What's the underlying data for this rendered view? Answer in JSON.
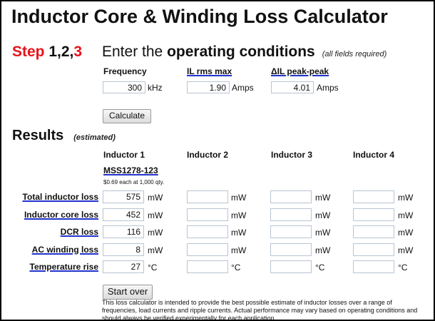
{
  "title": "Inductor Core & Winding Loss Calculator",
  "step": {
    "word": "Step",
    "nums": "1,2,",
    "active": "3"
  },
  "enter": {
    "prefix": "Enter the",
    "bold": "operating conditions",
    "note": "(all fields required)"
  },
  "inputs": [
    {
      "label": "Frequency",
      "value": "300",
      "unit": "kHz"
    },
    {
      "label": "IL rms max",
      "value": "1.90",
      "unit": "Amps"
    },
    {
      "label": "ΔIL peak-peak",
      "value": "4.01",
      "unit": "Amps"
    }
  ],
  "calculate_label": "Calculate",
  "results": {
    "title": "Results",
    "note": "(estimated)",
    "inductors": [
      "Inductor 1",
      "Inductor 2",
      "Inductor 3",
      "Inductor 4"
    ],
    "part": "MSS1278-123",
    "price": "$0.69 each at 1,000 qty.",
    "rows": [
      {
        "label": "Total inductor loss",
        "unit": "mW",
        "values": [
          "575",
          "",
          "",
          ""
        ]
      },
      {
        "label": "Inductor core loss",
        "unit": "mW",
        "values": [
          "452",
          "",
          "",
          ""
        ]
      },
      {
        "label": "DCR loss",
        "unit": "mW",
        "values": [
          "116",
          "",
          "",
          ""
        ]
      },
      {
        "label": "AC winding loss",
        "unit": "mW",
        "values": [
          "8",
          "",
          "",
          ""
        ]
      },
      {
        "label": "Temperature rise",
        "unit": "°C",
        "values": [
          "27",
          "",
          "",
          ""
        ]
      }
    ]
  },
  "start_over_label": "Start over",
  "disclaimer": "This loss calculator is intended to provide the best possible estimate of inductor losses over a range of frequencies, load currents and ripple currents. Actual performance may vary based on operating conditions and should always be verified experimentally for each application.",
  "colors": {
    "step_red": "#e8141b",
    "link_underline": "#2233cc"
  }
}
